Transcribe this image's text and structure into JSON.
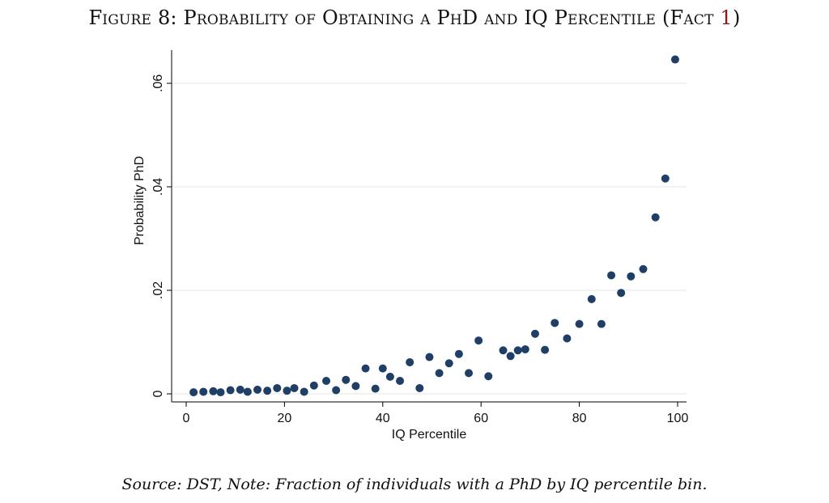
{
  "figure": {
    "title": "Figure 8: Probability of Obtaining a PhD and IQ Percentile (Fact ",
    "title_ref": "1",
    "title_end": ")",
    "caption": "Source: DST, Note: Fraction of individuals with a PhD by IQ percentile bin."
  },
  "chart_data": {
    "type": "scatter",
    "xlabel": "IQ Percentile",
    "ylabel": "Probability PhD",
    "xlim": [
      0,
      100
    ],
    "ylim": [
      0,
      0.066
    ],
    "xticks": [
      0,
      20,
      40,
      60,
      80,
      100
    ],
    "xtick_labels": [
      "0",
      "20",
      "40",
      "60",
      "80",
      "100"
    ],
    "yticks": [
      0,
      0.02,
      0.04,
      0.06
    ],
    "ytick_labels": [
      "0",
      ".02",
      ".04",
      ".06"
    ],
    "grid": true,
    "marker_color": "#1f3f66",
    "series": [
      {
        "x": [
          1.5,
          3.5,
          5.5,
          7,
          9,
          11,
          12.5,
          14.5,
          16.5,
          18.5,
          20.5,
          22,
          24,
          26,
          28.5,
          30.5,
          32.5,
          34.5,
          36.5,
          38.5,
          40,
          41.5,
          43.5,
          45.5,
          47.5,
          49.5,
          51.5,
          53.5,
          55.5,
          57.5,
          59.5,
          61.5,
          64.5,
          66,
          67.5,
          69,
          71,
          73,
          75,
          77.5,
          80,
          82.5,
          84.5,
          86.5,
          88.5,
          90.5,
          93,
          95.5,
          97.5,
          99.5
        ],
        "y": [
          0.0003,
          0.0004,
          0.0005,
          0.0003,
          0.0007,
          0.0008,
          0.0004,
          0.0008,
          0.0006,
          0.0011,
          0.0006,
          0.0011,
          0.0004,
          0.0016,
          0.0025,
          0.0007,
          0.0027,
          0.0015,
          0.0049,
          0.001,
          0.0049,
          0.0033,
          0.0025,
          0.0061,
          0.0011,
          0.0071,
          0.004,
          0.0059,
          0.0077,
          0.004,
          0.0103,
          0.0034,
          0.0084,
          0.0073,
          0.0084,
          0.0086,
          0.0116,
          0.0085,
          0.0137,
          0.0107,
          0.0135,
          0.0183,
          0.0135,
          0.0229,
          0.0195,
          0.0227,
          0.0241,
          0.0341,
          0.0416,
          0.0646
        ]
      }
    ]
  }
}
